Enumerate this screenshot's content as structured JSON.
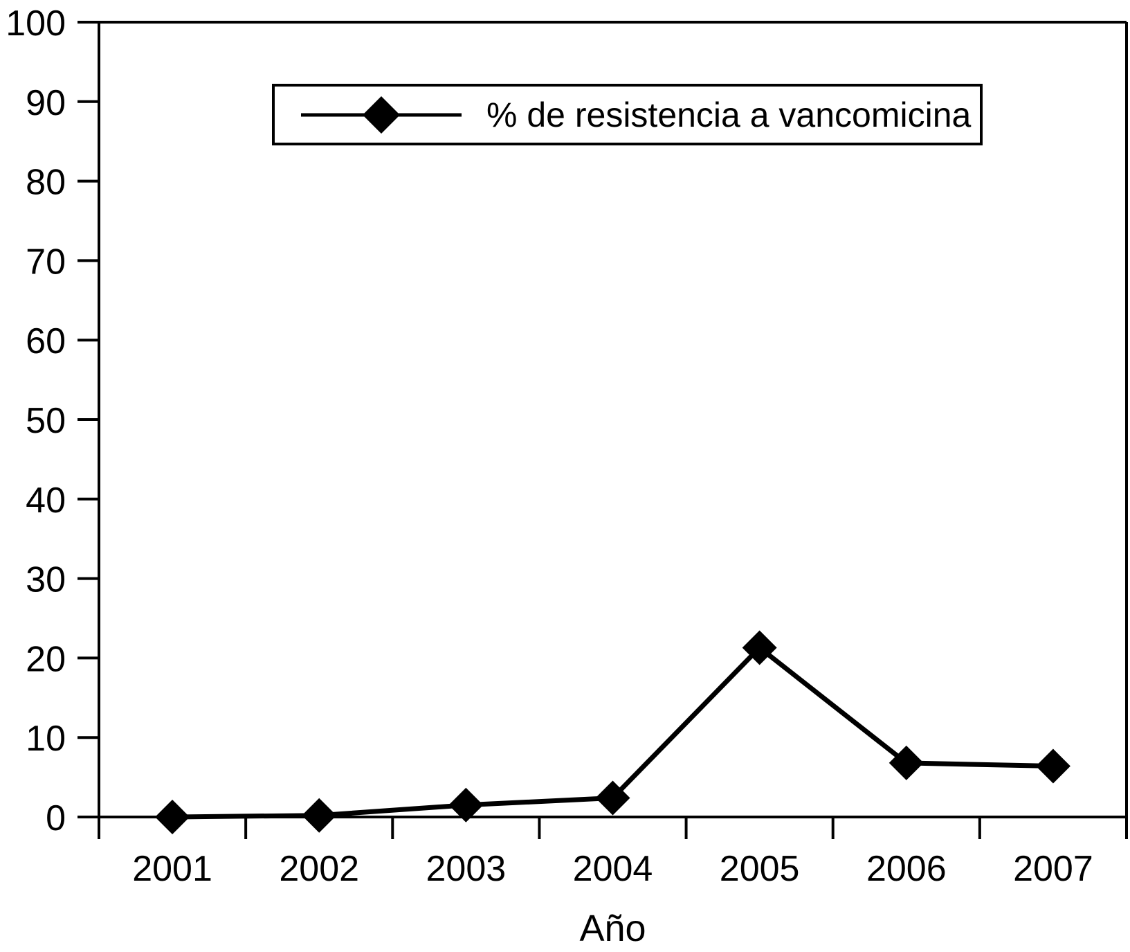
{
  "figure": {
    "background_color": "#ffffff",
    "ink_color": "#000000"
  },
  "chart_data": {
    "type": "line",
    "title": "",
    "xlabel": "Año",
    "ylabel": "",
    "categories": [
      "2001",
      "2002",
      "2003",
      "2004",
      "2005",
      "2006",
      "2007"
    ],
    "series": [
      {
        "name": "% de resistencia a vancomicina",
        "values": [
          0,
          0.2,
          1.5,
          2.4,
          21.3,
          6.8,
          6.4
        ],
        "color": "#000000",
        "marker": "diamond"
      }
    ],
    "ylim": [
      0,
      100
    ],
    "yticks": [
      0,
      10,
      20,
      30,
      40,
      50,
      60,
      70,
      80,
      90,
      100
    ],
    "grid": false,
    "legend_position": "top-center-inside",
    "frame": "left-top-right-bottom"
  }
}
